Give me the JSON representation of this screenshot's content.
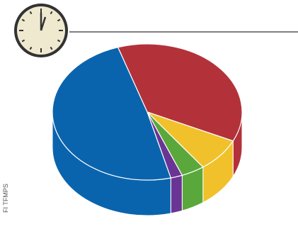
{
  "chart_data": {
    "type": "pie",
    "values": [
      37,
      8,
      4,
      2,
      49
    ],
    "colors": [
      "#b3323a",
      "#f0c12a",
      "#5aa83c",
      "#6a3494",
      "#0a64ad"
    ],
    "credit": "FI TFMPS"
  }
}
